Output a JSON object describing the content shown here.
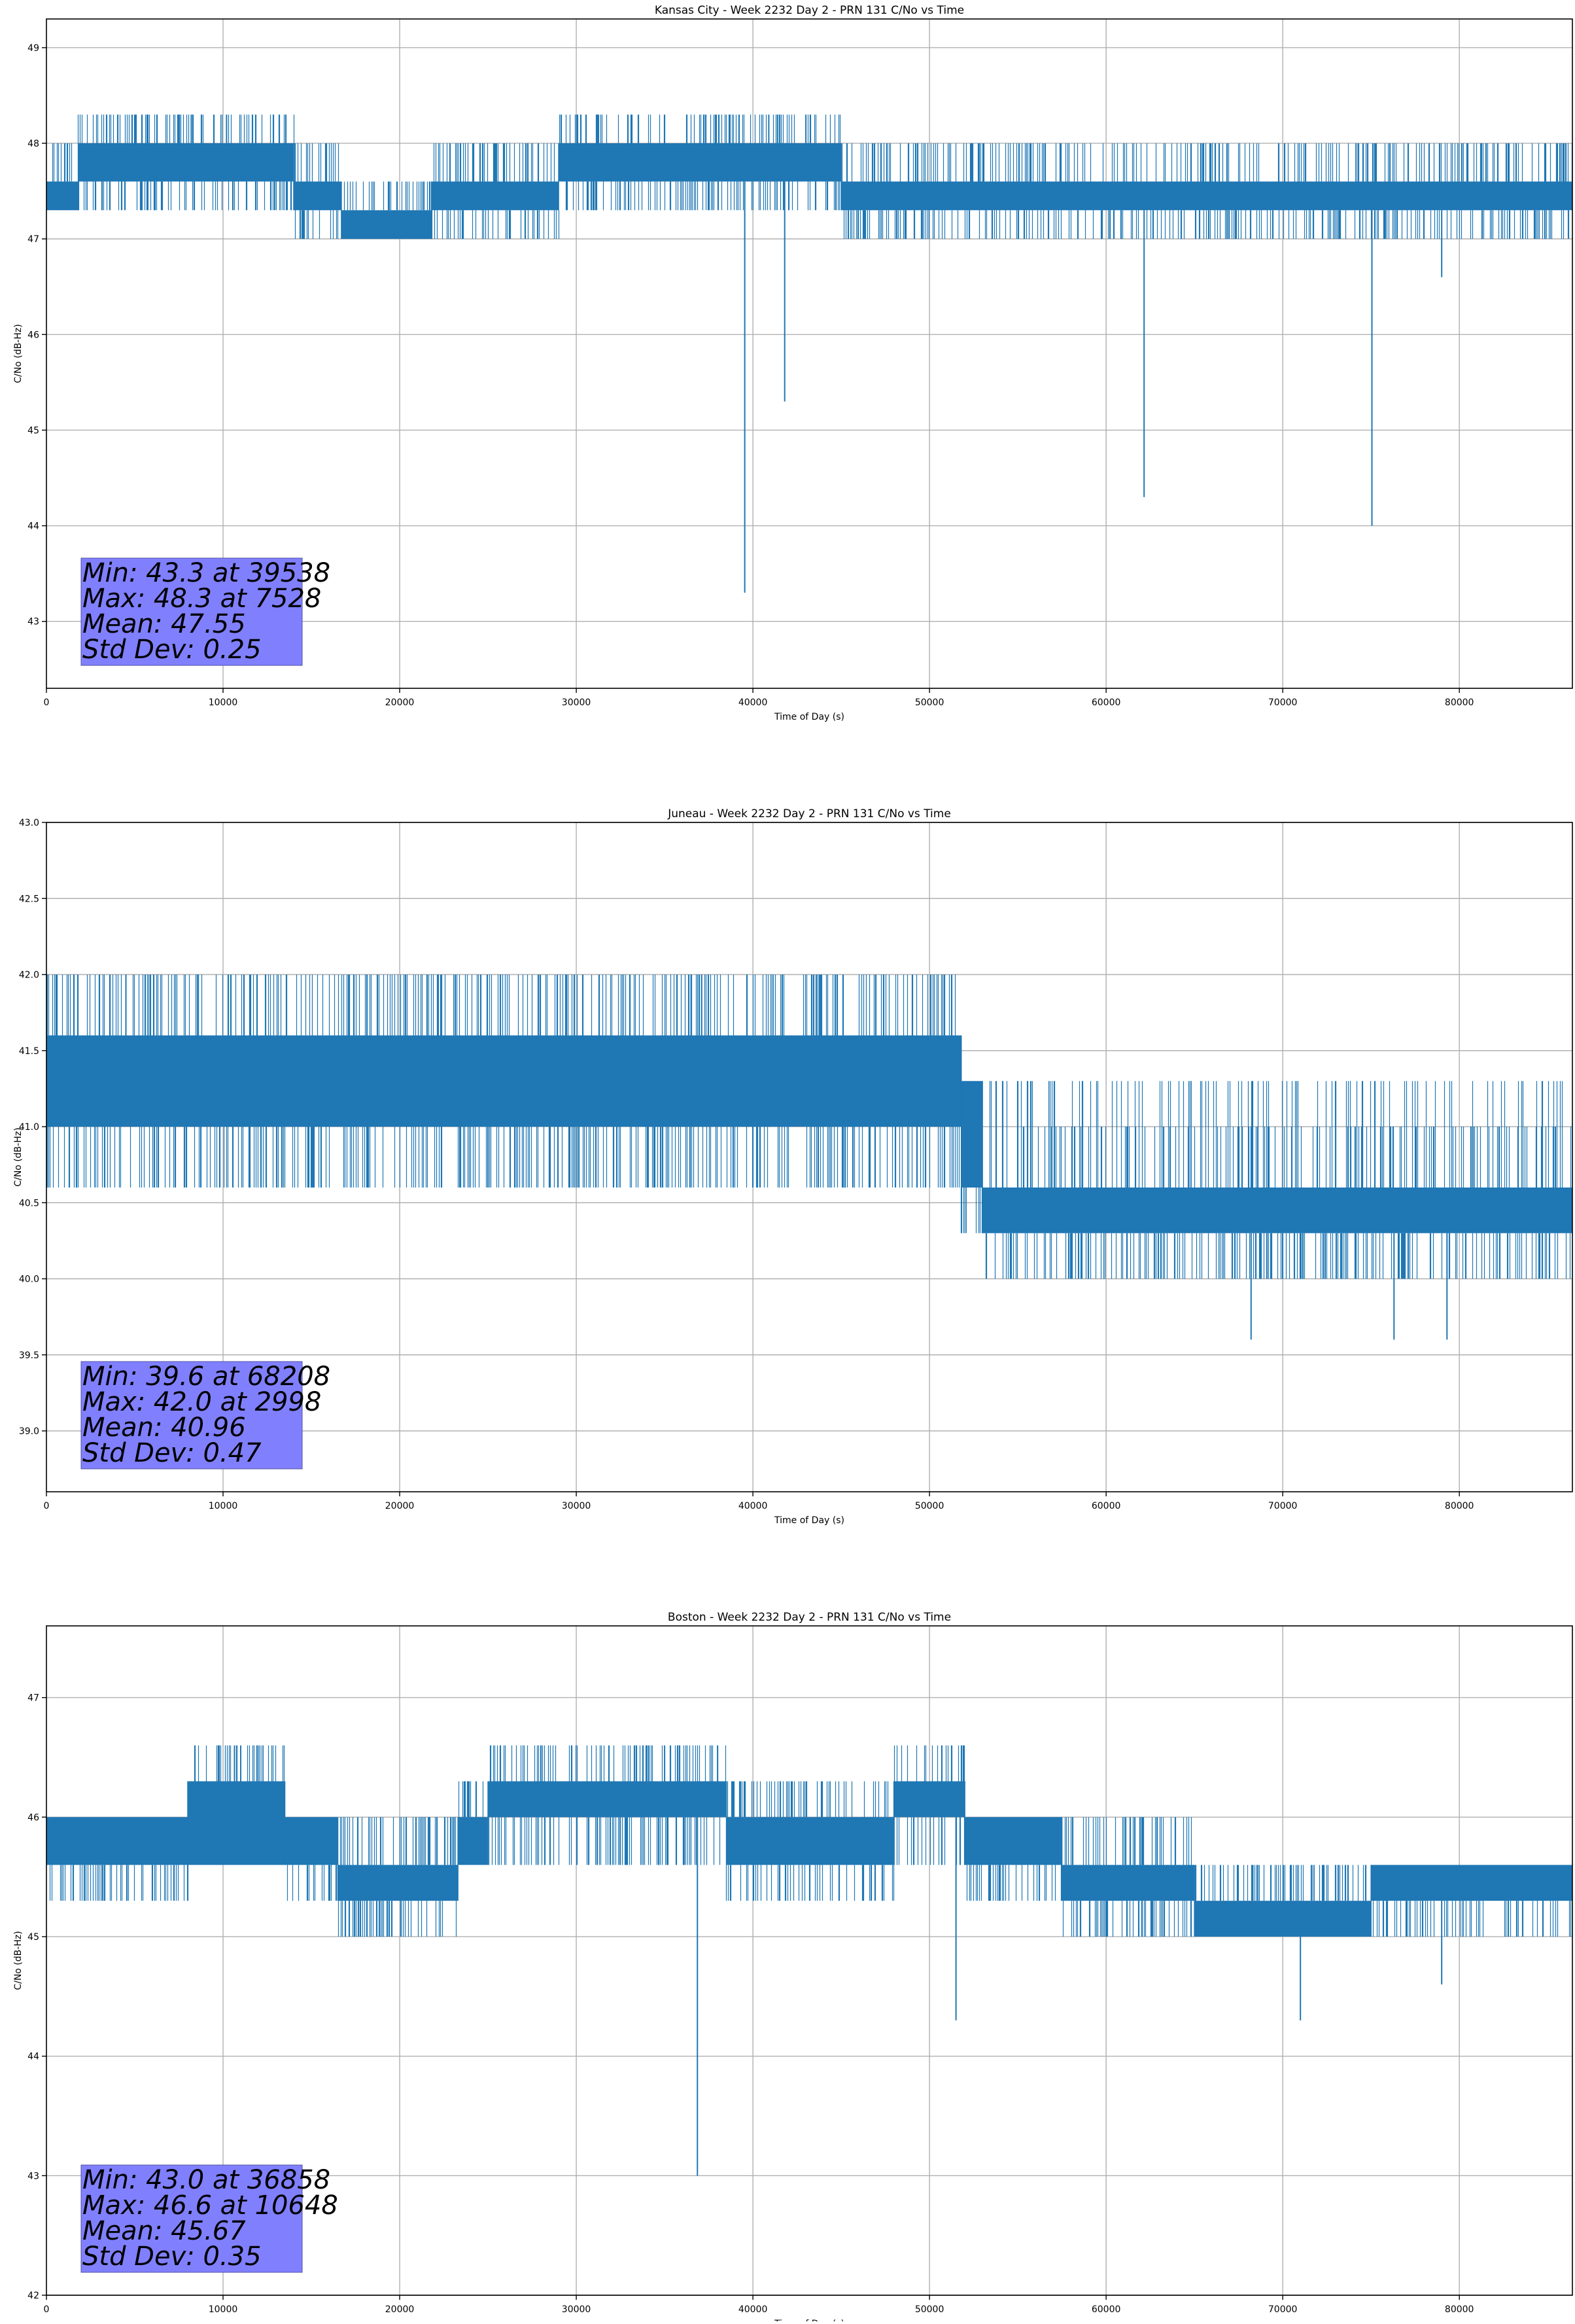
{
  "chart_data": [
    {
      "type": "line",
      "title": "Kansas City - Week 2232 Day 2 - PRN 131 C/No vs Time",
      "xlabel": "Time of Day (s)",
      "ylabel": "C/No (dB-Hz)",
      "xlim": [
        0,
        86400
      ],
      "ylim": [
        42.3,
        49.3
      ],
      "xticks": [
        0,
        10000,
        20000,
        30000,
        40000,
        50000,
        60000,
        70000,
        80000
      ],
      "yticks": [
        43,
        44,
        45,
        46,
        47,
        48,
        49
      ],
      "ytick_decimals": 0,
      "grid": true,
      "color": "#1f77b4",
      "bands": [
        {
          "x": [
            0,
            1800
          ],
          "low": 47.3,
          "high": 47.6,
          "fringe_low": [],
          "fringe_high": [
            48.0
          ]
        },
        {
          "x": [
            1800,
            14000
          ],
          "low": 47.6,
          "high": 48.0,
          "fringe_low": [
            47.3
          ],
          "fringe_high": [
            48.3
          ]
        },
        {
          "x": [
            14000,
            16700
          ],
          "low": 47.3,
          "high": 47.6,
          "fringe_low": [
            47.0
          ],
          "fringe_high": [
            48.0
          ]
        },
        {
          "x": [
            16700,
            21800
          ],
          "low": 47.0,
          "high": 47.3,
          "fringe_low": [],
          "fringe_high": [
            47.6
          ]
        },
        {
          "x": [
            21800,
            29000
          ],
          "low": 47.3,
          "high": 47.6,
          "fringe_low": [
            47.0
          ],
          "fringe_high": [
            48.0
          ]
        },
        {
          "x": [
            29000,
            45000
          ],
          "low": 47.6,
          "high": 48.0,
          "fringe_low": [
            47.3
          ],
          "fringe_high": [
            48.3
          ]
        },
        {
          "x": [
            45000,
            86400
          ],
          "low": 47.3,
          "high": 47.6,
          "fringe_low": [
            47.0
          ],
          "fringe_high": [
            48.0
          ]
        }
      ],
      "dips": [
        {
          "x": 39538,
          "min": 43.3
        },
        {
          "x": 41800,
          "min": 45.3
        },
        {
          "x": 62150,
          "min": 44.3
        },
        {
          "x": 75050,
          "min": 44.0
        },
        {
          "x": 79000,
          "min": 46.6
        }
      ],
      "peaks": [
        {
          "x": 7528,
          "max": 48.3
        },
        {
          "x": 8200,
          "max": 48.3
        },
        {
          "x": 10200,
          "max": 48.3
        },
        {
          "x": 38700,
          "max": 48.3
        },
        {
          "x": 40900,
          "max": 48.3
        },
        {
          "x": 41400,
          "max": 48.3
        },
        {
          "x": 43000,
          "max": 48.3
        }
      ],
      "stats": [
        "Min: 43.3 at 39538",
        "Max: 48.3 at 7528",
        "Mean: 47.55",
        "Std Dev: 0.25"
      ]
    },
    {
      "type": "line",
      "title": "Juneau - Week 2232 Day 2 - PRN 131 C/No vs Time",
      "xlabel": "Time of Day (s)",
      "ylabel": "C/No (dB-Hz)",
      "xlim": [
        0,
        86400
      ],
      "ylim": [
        38.6,
        43.0
      ],
      "xticks": [
        0,
        10000,
        20000,
        30000,
        40000,
        50000,
        60000,
        70000,
        80000
      ],
      "yticks": [
        39.0,
        39.5,
        40.0,
        40.5,
        41.0,
        41.5,
        42.0,
        42.5,
        43.0
      ],
      "ytick_decimals": 1,
      "grid": true,
      "color": "#1f77b4",
      "bands": [
        {
          "x": [
            0,
            51800
          ],
          "low": 41.0,
          "high": 41.6,
          "fringe_low": [
            40.6
          ],
          "fringe_high": [
            42.0
          ]
        },
        {
          "x": [
            51800,
            53000
          ],
          "low": 40.6,
          "high": 41.3,
          "fringe_low": [
            40.3
          ],
          "fringe_high": []
        },
        {
          "x": [
            53000,
            86400
          ],
          "low": 40.3,
          "high": 40.6,
          "fringe_low": [
            40.0
          ],
          "fringe_high": [
            41.0,
            41.3
          ]
        }
      ],
      "dips": [
        {
          "x": 68208,
          "min": 39.6
        },
        {
          "x": 76300,
          "min": 39.6
        },
        {
          "x": 79300,
          "min": 39.6
        }
      ],
      "peaks": [
        {
          "x": 2998,
          "max": 42.0
        },
        {
          "x": 3600,
          "max": 42.0
        },
        {
          "x": 4500,
          "max": 42.0
        },
        {
          "x": 8600,
          "max": 42.0
        },
        {
          "x": 25700,
          "max": 42.0
        },
        {
          "x": 36500,
          "max": 42.0
        },
        {
          "x": 37100,
          "max": 42.0
        }
      ],
      "stats": [
        "Min: 39.6 at 68208",
        "Max: 42.0 at 2998",
        "Mean: 40.96",
        "Std Dev: 0.47"
      ]
    },
    {
      "type": "line",
      "title": "Boston - Week 2232 Day 2 - PRN 131 C/No vs Time",
      "xlabel": "Time of Day (s)",
      "ylabel": "C/No (dB-Hz)",
      "xlim": [
        0,
        86400
      ],
      "ylim": [
        42.0,
        47.6
      ],
      "xticks": [
        0,
        10000,
        20000,
        30000,
        40000,
        50000,
        60000,
        70000,
        80000
      ],
      "yticks": [
        42,
        43,
        44,
        45,
        46,
        47
      ],
      "ytick_decimals": 0,
      "grid": true,
      "color": "#1f77b4",
      "bands": [
        {
          "x": [
            0,
            8000
          ],
          "low": 45.6,
          "high": 46.0,
          "fringe_low": [
            45.3
          ],
          "fringe_high": []
        },
        {
          "x": [
            8000,
            13500
          ],
          "low": 45.6,
          "high": 46.3,
          "fringe_low": [],
          "fringe_high": [
            46.6
          ]
        },
        {
          "x": [
            13500,
            16500
          ],
          "low": 45.6,
          "high": 46.0,
          "fringe_low": [
            45.3
          ],
          "fringe_high": []
        },
        {
          "x": [
            16500,
            23300
          ],
          "low": 45.3,
          "high": 45.6,
          "fringe_low": [
            45.0
          ],
          "fringe_high": [
            46.0
          ]
        },
        {
          "x": [
            23300,
            25000
          ],
          "low": 45.6,
          "high": 46.0,
          "fringe_low": [],
          "fringe_high": [
            46.3
          ]
        },
        {
          "x": [
            25000,
            38500
          ],
          "low": 46.0,
          "high": 46.3,
          "fringe_low": [
            45.6
          ],
          "fringe_high": [
            46.6
          ]
        },
        {
          "x": [
            38500,
            48000
          ],
          "low": 45.6,
          "high": 46.0,
          "fringe_low": [
            45.3
          ],
          "fringe_high": [
            46.3
          ]
        },
        {
          "x": [
            48000,
            52000
          ],
          "low": 46.0,
          "high": 46.3,
          "fringe_low": [
            45.6
          ],
          "fringe_high": [
            46.6
          ]
        },
        {
          "x": [
            52000,
            57500
          ],
          "low": 45.6,
          "high": 46.0,
          "fringe_low": [
            45.3
          ],
          "fringe_high": []
        },
        {
          "x": [
            57500,
            65000
          ],
          "low": 45.3,
          "high": 45.6,
          "fringe_low": [
            45.0
          ],
          "fringe_high": [
            46.0
          ]
        },
        {
          "x": [
            65000,
            75000
          ],
          "low": 45.0,
          "high": 45.3,
          "fringe_low": [],
          "fringe_high": [
            45.6
          ]
        },
        {
          "x": [
            75000,
            86400
          ],
          "low": 45.3,
          "high": 45.6,
          "fringe_low": [
            45.0
          ],
          "fringe_high": []
        }
      ],
      "dips": [
        {
          "x": 36858,
          "min": 43.0
        },
        {
          "x": 51500,
          "min": 44.3
        },
        {
          "x": 71000,
          "min": 44.3
        },
        {
          "x": 79000,
          "min": 44.6
        }
      ],
      "peaks": [
        {
          "x": 10648,
          "max": 46.6
        },
        {
          "x": 11000,
          "max": 46.6
        },
        {
          "x": 34000,
          "max": 46.6
        },
        {
          "x": 35000,
          "max": 46.6
        },
        {
          "x": 38000,
          "max": 46.6
        },
        {
          "x": 50700,
          "max": 46.6
        }
      ],
      "stats": [
        "Min: 43.0 at 36858",
        "Max: 46.6 at 10648",
        "Mean: 45.67",
        "Std Dev: 0.35"
      ]
    }
  ]
}
